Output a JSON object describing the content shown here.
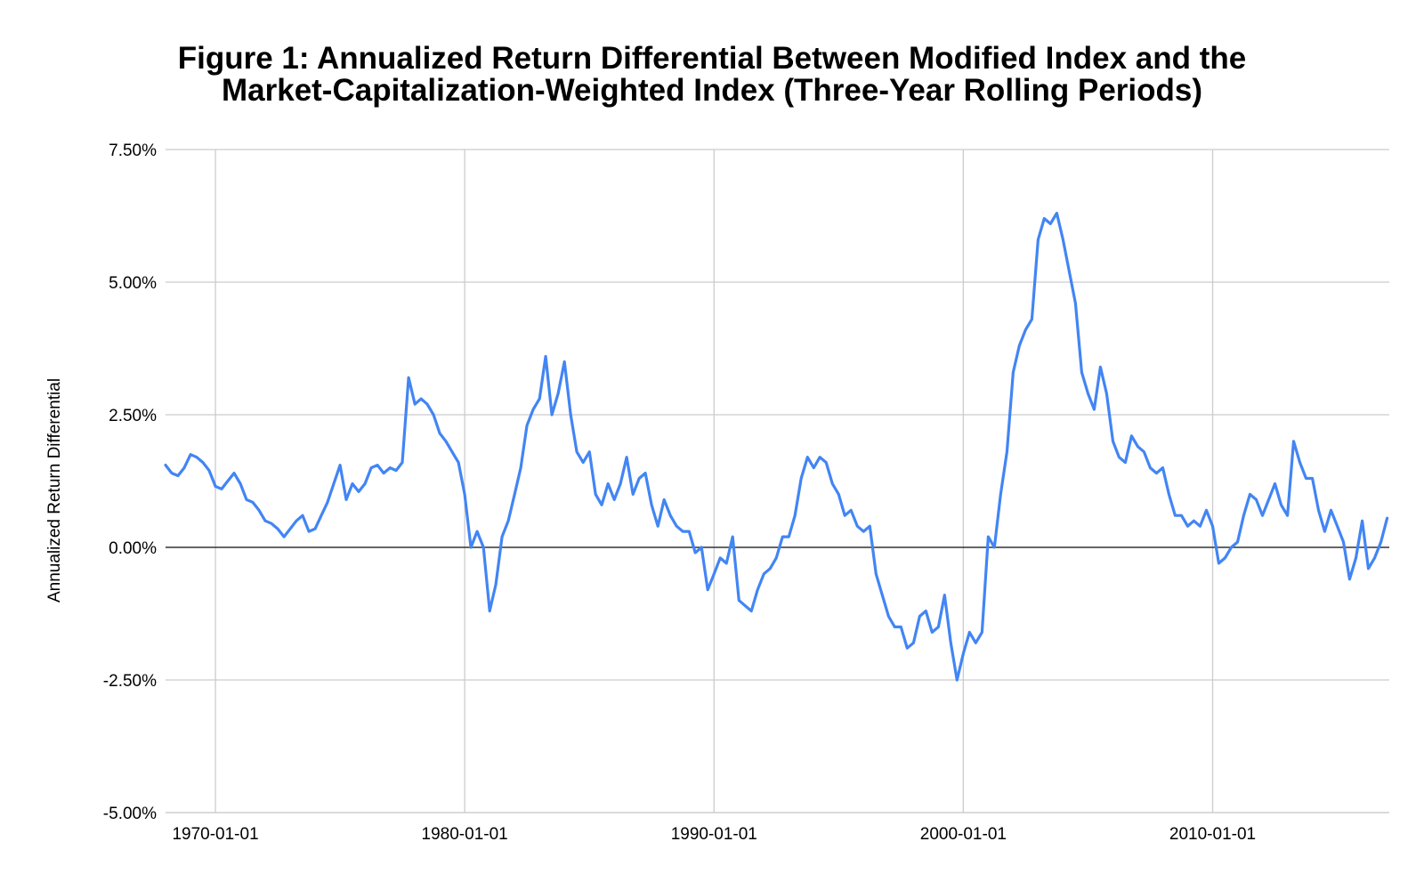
{
  "chart_data": {
    "type": "line",
    "title_lines": [
      "Figure 1: Annualized Return Differential Between Modified Index and the",
      "Market-Capitalization-Weighted Index (Three-Year Rolling Periods)"
    ],
    "xlabel": "",
    "ylabel": "Annualized Return Differential",
    "y_unit": "percent",
    "ylim": [
      -5.0,
      7.5
    ],
    "y_ticks": [
      -5.0,
      -2.5,
      0.0,
      2.5,
      5.0,
      7.5
    ],
    "y_tick_labels": [
      "-5.00%",
      "-2.50%",
      "0.00%",
      "2.50%",
      "5.00%",
      "7.50%"
    ],
    "xlim": [
      "1968-01-01",
      "2017-02-01"
    ],
    "x_ticks": [
      "1970-01-01",
      "1980-01-01",
      "1990-01-01",
      "2000-01-01",
      "2010-01-01"
    ],
    "grid": true,
    "zero_line": true,
    "line_color": "#4285f4",
    "series": [
      {
        "points": [
          [
            "1968-01-01",
            1.55
          ],
          [
            "1968-04-01",
            1.4
          ],
          [
            "1968-07-01",
            1.35
          ],
          [
            "1968-10-01",
            1.5
          ],
          [
            "1969-01-01",
            1.75
          ],
          [
            "1969-04-01",
            1.7
          ],
          [
            "1969-07-01",
            1.6
          ],
          [
            "1969-10-01",
            1.45
          ],
          [
            "1970-01-01",
            1.15
          ],
          [
            "1970-04-01",
            1.1
          ],
          [
            "1970-07-01",
            1.25
          ],
          [
            "1970-10-01",
            1.4
          ],
          [
            "1971-01-01",
            1.2
          ],
          [
            "1971-04-01",
            0.9
          ],
          [
            "1971-07-01",
            0.85
          ],
          [
            "1971-10-01",
            0.7
          ],
          [
            "1972-01-01",
            0.5
          ],
          [
            "1972-04-01",
            0.45
          ],
          [
            "1972-07-01",
            0.35
          ],
          [
            "1972-10-01",
            0.2
          ],
          [
            "1973-01-01",
            0.35
          ],
          [
            "1973-04-01",
            0.5
          ],
          [
            "1973-07-01",
            0.6
          ],
          [
            "1973-10-01",
            0.3
          ],
          [
            "1974-01-01",
            0.35
          ],
          [
            "1974-04-01",
            0.6
          ],
          [
            "1974-07-01",
            0.85
          ],
          [
            "1974-10-01",
            1.2
          ],
          [
            "1975-01-01",
            1.55
          ],
          [
            "1975-04-01",
            0.9
          ],
          [
            "1975-07-01",
            1.2
          ],
          [
            "1975-10-01",
            1.05
          ],
          [
            "1976-01-01",
            1.2
          ],
          [
            "1976-04-01",
            1.5
          ],
          [
            "1976-07-01",
            1.55
          ],
          [
            "1976-10-01",
            1.4
          ],
          [
            "1977-01-01",
            1.5
          ],
          [
            "1977-04-01",
            1.45
          ],
          [
            "1977-07-01",
            1.6
          ],
          [
            "1977-10-01",
            3.2
          ],
          [
            "1978-01-01",
            2.7
          ],
          [
            "1978-04-01",
            2.8
          ],
          [
            "1978-07-01",
            2.7
          ],
          [
            "1978-10-01",
            2.5
          ],
          [
            "1979-01-01",
            2.15
          ],
          [
            "1979-04-01",
            2.0
          ],
          [
            "1979-07-01",
            1.8
          ],
          [
            "1979-10-01",
            1.6
          ],
          [
            "1980-01-01",
            1.0
          ],
          [
            "1980-04-01",
            0.0
          ],
          [
            "1980-07-01",
            0.3
          ],
          [
            "1980-10-01",
            0.0
          ],
          [
            "1981-01-01",
            -1.2
          ],
          [
            "1981-04-01",
            -0.7
          ],
          [
            "1981-07-01",
            0.2
          ],
          [
            "1981-10-01",
            0.5
          ],
          [
            "1982-01-01",
            1.0
          ],
          [
            "1982-04-01",
            1.5
          ],
          [
            "1982-07-01",
            2.3
          ],
          [
            "1982-10-01",
            2.6
          ],
          [
            "1983-01-01",
            2.8
          ],
          [
            "1983-04-01",
            3.6
          ],
          [
            "1983-07-01",
            2.5
          ],
          [
            "1983-10-01",
            2.9
          ],
          [
            "1984-01-01",
            3.5
          ],
          [
            "1984-04-01",
            2.5
          ],
          [
            "1984-07-01",
            1.8
          ],
          [
            "1984-10-01",
            1.6
          ],
          [
            "1985-01-01",
            1.8
          ],
          [
            "1985-04-01",
            1.0
          ],
          [
            "1985-07-01",
            0.8
          ],
          [
            "1985-10-01",
            1.2
          ],
          [
            "1986-01-01",
            0.9
          ],
          [
            "1986-04-01",
            1.2
          ],
          [
            "1986-07-01",
            1.7
          ],
          [
            "1986-10-01",
            1.0
          ],
          [
            "1987-01-01",
            1.3
          ],
          [
            "1987-04-01",
            1.4
          ],
          [
            "1987-07-01",
            0.8
          ],
          [
            "1987-10-01",
            0.4
          ],
          [
            "1988-01-01",
            0.9
          ],
          [
            "1988-04-01",
            0.6
          ],
          [
            "1988-07-01",
            0.4
          ],
          [
            "1988-10-01",
            0.3
          ],
          [
            "1989-01-01",
            0.3
          ],
          [
            "1989-04-01",
            -0.1
          ],
          [
            "1989-07-01",
            0.0
          ],
          [
            "1989-10-01",
            -0.8
          ],
          [
            "1990-01-01",
            -0.5
          ],
          [
            "1990-04-01",
            -0.2
          ],
          [
            "1990-07-01",
            -0.3
          ],
          [
            "1990-10-01",
            0.2
          ],
          [
            "1991-01-01",
            -1.0
          ],
          [
            "1991-04-01",
            -1.1
          ],
          [
            "1991-07-01",
            -1.2
          ],
          [
            "1991-10-01",
            -0.8
          ],
          [
            "1992-01-01",
            -0.5
          ],
          [
            "1992-04-01",
            -0.4
          ],
          [
            "1992-07-01",
            -0.2
          ],
          [
            "1992-10-01",
            0.2
          ],
          [
            "1993-01-01",
            0.2
          ],
          [
            "1993-04-01",
            0.6
          ],
          [
            "1993-07-01",
            1.3
          ],
          [
            "1993-10-01",
            1.7
          ],
          [
            "1994-01-01",
            1.5
          ],
          [
            "1994-04-01",
            1.7
          ],
          [
            "1994-07-01",
            1.6
          ],
          [
            "1994-10-01",
            1.2
          ],
          [
            "1995-01-01",
            1.0
          ],
          [
            "1995-04-01",
            0.6
          ],
          [
            "1995-07-01",
            0.7
          ],
          [
            "1995-10-01",
            0.4
          ],
          [
            "1996-01-01",
            0.3
          ],
          [
            "1996-04-01",
            0.4
          ],
          [
            "1996-07-01",
            -0.5
          ],
          [
            "1996-10-01",
            -0.9
          ],
          [
            "1997-01-01",
            -1.3
          ],
          [
            "1997-04-01",
            -1.5
          ],
          [
            "1997-07-01",
            -1.5
          ],
          [
            "1997-10-01",
            -1.9
          ],
          [
            "1998-01-01",
            -1.8
          ],
          [
            "1998-04-01",
            -1.3
          ],
          [
            "1998-07-01",
            -1.2
          ],
          [
            "1998-10-01",
            -1.6
          ],
          [
            "1999-01-01",
            -1.5
          ],
          [
            "1999-04-01",
            -0.9
          ],
          [
            "1999-07-01",
            -1.8
          ],
          [
            "1999-10-01",
            -2.5
          ],
          [
            "2000-01-01",
            -2.0
          ],
          [
            "2000-04-01",
            -1.6
          ],
          [
            "2000-07-01",
            -1.8
          ],
          [
            "2000-10-01",
            -1.6
          ],
          [
            "2001-01-01",
            0.2
          ],
          [
            "2001-04-01",
            0.0
          ],
          [
            "2001-07-01",
            1.0
          ],
          [
            "2001-10-01",
            1.8
          ],
          [
            "2002-01-01",
            3.3
          ],
          [
            "2002-04-01",
            3.8
          ],
          [
            "2002-07-01",
            4.1
          ],
          [
            "2002-10-01",
            4.3
          ],
          [
            "2003-01-01",
            5.8
          ],
          [
            "2003-04-01",
            6.2
          ],
          [
            "2003-07-01",
            6.1
          ],
          [
            "2003-10-01",
            6.3
          ],
          [
            "2004-01-01",
            5.8
          ],
          [
            "2004-04-01",
            5.2
          ],
          [
            "2004-07-01",
            4.6
          ],
          [
            "2004-10-01",
            3.3
          ],
          [
            "2005-01-01",
            2.9
          ],
          [
            "2005-04-01",
            2.6
          ],
          [
            "2005-07-01",
            3.4
          ],
          [
            "2005-10-01",
            2.9
          ],
          [
            "2006-01-01",
            2.0
          ],
          [
            "2006-04-01",
            1.7
          ],
          [
            "2006-07-01",
            1.6
          ],
          [
            "2006-10-01",
            2.1
          ],
          [
            "2007-01-01",
            1.9
          ],
          [
            "2007-04-01",
            1.8
          ],
          [
            "2007-07-01",
            1.5
          ],
          [
            "2007-10-01",
            1.4
          ],
          [
            "2008-01-01",
            1.5
          ],
          [
            "2008-04-01",
            1.0
          ],
          [
            "2008-07-01",
            0.6
          ],
          [
            "2008-10-01",
            0.6
          ],
          [
            "2009-01-01",
            0.4
          ],
          [
            "2009-04-01",
            0.5
          ],
          [
            "2009-07-01",
            0.4
          ],
          [
            "2009-10-01",
            0.7
          ],
          [
            "2010-01-01",
            0.4
          ],
          [
            "2010-04-01",
            -0.3
          ],
          [
            "2010-07-01",
            -0.2
          ],
          [
            "2010-10-01",
            0.0
          ],
          [
            "2011-01-01",
            0.1
          ],
          [
            "2011-04-01",
            0.6
          ],
          [
            "2011-07-01",
            1.0
          ],
          [
            "2011-10-01",
            0.9
          ],
          [
            "2012-01-01",
            0.6
          ],
          [
            "2012-04-01",
            0.9
          ],
          [
            "2012-07-01",
            1.2
          ],
          [
            "2012-10-01",
            0.8
          ],
          [
            "2013-01-01",
            0.6
          ],
          [
            "2013-04-01",
            2.0
          ],
          [
            "2013-07-01",
            1.6
          ],
          [
            "2013-10-01",
            1.3
          ],
          [
            "2014-01-01",
            1.3
          ],
          [
            "2014-04-01",
            0.7
          ],
          [
            "2014-07-01",
            0.3
          ],
          [
            "2014-10-01",
            0.7
          ],
          [
            "2015-01-01",
            0.4
          ],
          [
            "2015-04-01",
            0.1
          ],
          [
            "2015-07-01",
            -0.6
          ],
          [
            "2015-10-01",
            -0.2
          ],
          [
            "2016-01-01",
            0.5
          ],
          [
            "2016-04-01",
            -0.4
          ],
          [
            "2016-07-01",
            -0.2
          ],
          [
            "2016-10-01",
            0.1
          ],
          [
            "2017-01-01",
            0.55
          ]
        ]
      }
    ]
  }
}
